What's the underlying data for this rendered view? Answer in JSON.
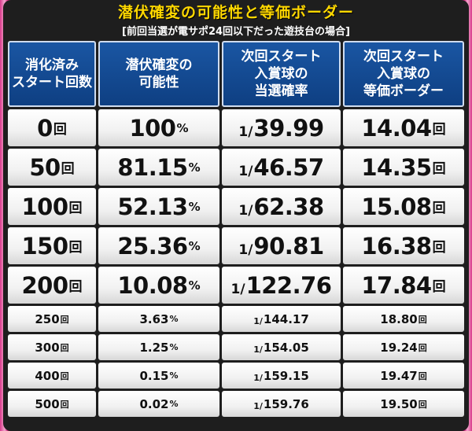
{
  "title": "潜伏確変の可能性と等価ボーダー",
  "subtitle": "[前回当選が電サポ24回以下だった遊技台の場合]",
  "headers": [
    "消化済み\nスタート回数",
    "潜伏確変の\n可能性",
    "次回スタート\n入賞球の\n当選確率",
    "次回スタート\n入賞球の\n等価ボーダー"
  ],
  "units": {
    "count": "回",
    "percent": "%",
    "prob_prefix": "1/",
    "border": "回"
  },
  "rows": [
    {
      "starts": "0",
      "possibility": "100",
      "probability": "39.99",
      "border": "14.04"
    },
    {
      "starts": "50",
      "possibility": "81.15",
      "probability": "46.57",
      "border": "14.35"
    },
    {
      "starts": "100",
      "possibility": "52.13",
      "probability": "62.38",
      "border": "15.08"
    },
    {
      "starts": "150",
      "possibility": "25.36",
      "probability": "90.81",
      "border": "16.38"
    },
    {
      "starts": "200",
      "possibility": "10.08",
      "probability": "122.76",
      "border": "17.84"
    },
    {
      "starts": "250",
      "possibility": "3.63",
      "probability": "144.17",
      "border": "18.80"
    },
    {
      "starts": "300",
      "possibility": "1.25",
      "probability": "154.05",
      "border": "19.24"
    },
    {
      "starts": "400",
      "possibility": "0.15",
      "probability": "159.15",
      "border": "19.47"
    },
    {
      "starts": "500",
      "possibility": "0.02",
      "probability": "159.76",
      "border": "19.50"
    }
  ]
}
